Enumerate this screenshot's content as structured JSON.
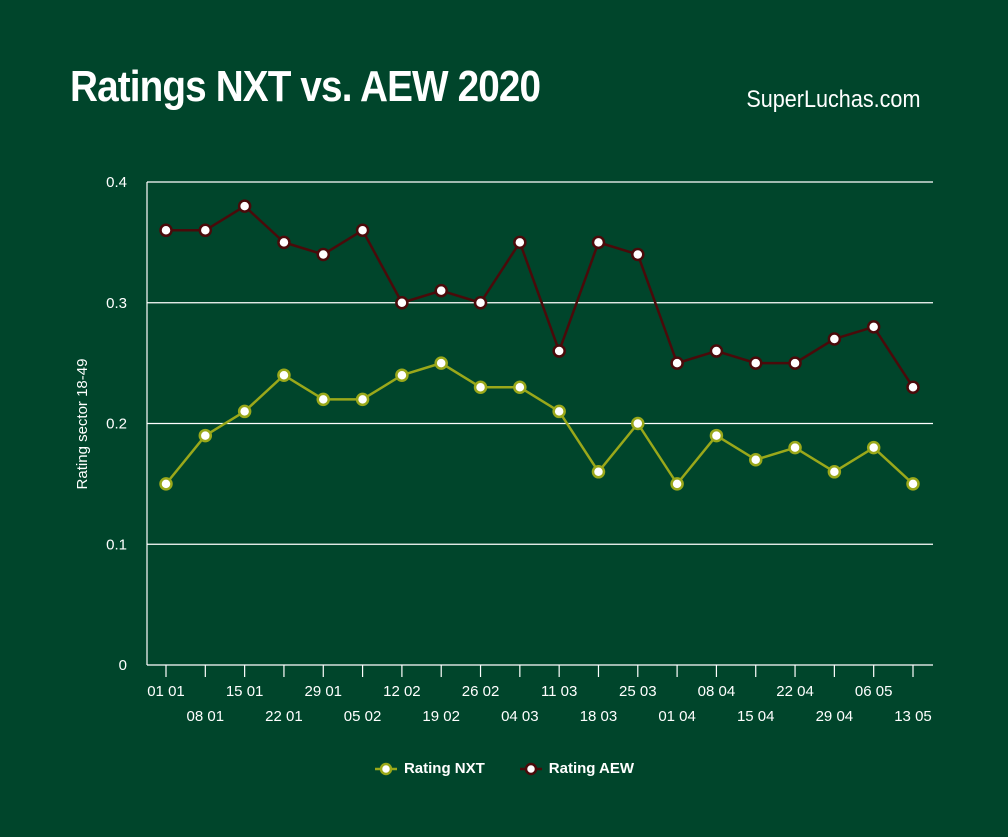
{
  "header": {
    "title": "Ratings NXT vs. AEW 2020",
    "brand": "SuperLuchas.com"
  },
  "colors": {
    "background": "#00452b",
    "nxt": "#9aa81a",
    "aew": "#4a0a0a",
    "grid": "#ffffff"
  },
  "chart_data": {
    "type": "line",
    "title": "Ratings NXT vs. AEW 2020",
    "ylabel": "Rating sector 18-49",
    "xlabel": "",
    "ylim": [
      0,
      0.4
    ],
    "yticks": [
      "0",
      "0.1",
      "0.2",
      "0.3",
      "0.4"
    ],
    "grid": true,
    "legend_position": "bottom",
    "categories": [
      "01 01",
      "08 01",
      "15 01",
      "22 01",
      "29 01",
      "05 02",
      "12 02",
      "19 02",
      "26 02",
      "04 03",
      "11 03",
      "18 03",
      "25 03",
      "01 04",
      "08 04",
      "15 04",
      "22 04",
      "29 04",
      "06 05",
      "13 05"
    ],
    "series": [
      {
        "name": "Rating NXT",
        "color": "#9aa81a",
        "values": [
          0.15,
          0.19,
          0.21,
          0.24,
          0.22,
          0.22,
          0.24,
          0.25,
          0.23,
          0.23,
          0.21,
          0.16,
          0.2,
          0.15,
          0.19,
          0.17,
          0.18,
          0.16,
          0.18,
          0.15
        ]
      },
      {
        "name": "Rating AEW",
        "color": "#4a0a0a",
        "values": [
          0.36,
          0.36,
          0.38,
          0.35,
          0.34,
          0.36,
          0.3,
          0.31,
          0.3,
          0.35,
          0.26,
          0.35,
          0.34,
          0.25,
          0.26,
          0.25,
          0.25,
          0.27,
          0.28,
          0.23
        ]
      }
    ]
  }
}
